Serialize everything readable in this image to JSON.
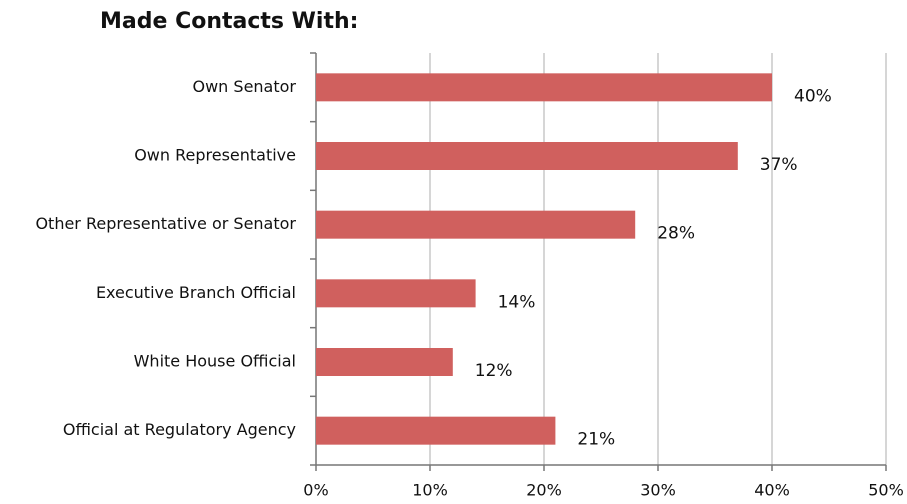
{
  "chart_data": {
    "type": "bar",
    "orientation": "horizontal",
    "title": "Made Contacts With:",
    "categories": [
      "Own Senator",
      "Own Representative",
      "Other Representative or Senator",
      "Executive Branch Official",
      "White House Official",
      "Official at Regulatory Agency"
    ],
    "values": [
      40,
      37,
      28,
      14,
      12,
      21
    ],
    "value_labels": [
      "40%",
      "37%",
      "28%",
      "14%",
      "12%",
      "21%"
    ],
    "color": "#d0605e",
    "xlim": [
      0,
      50
    ],
    "xticks": [
      {
        "value": 0,
        "label": "0%"
      },
      {
        "value": 10,
        "label": "10%"
      },
      {
        "value": 20,
        "label": "20%"
      },
      {
        "value": 30,
        "label": "30%"
      },
      {
        "value": 40,
        "label": "40%"
      },
      {
        "value": 50,
        "label": "50%"
      }
    ],
    "grid": true
  }
}
